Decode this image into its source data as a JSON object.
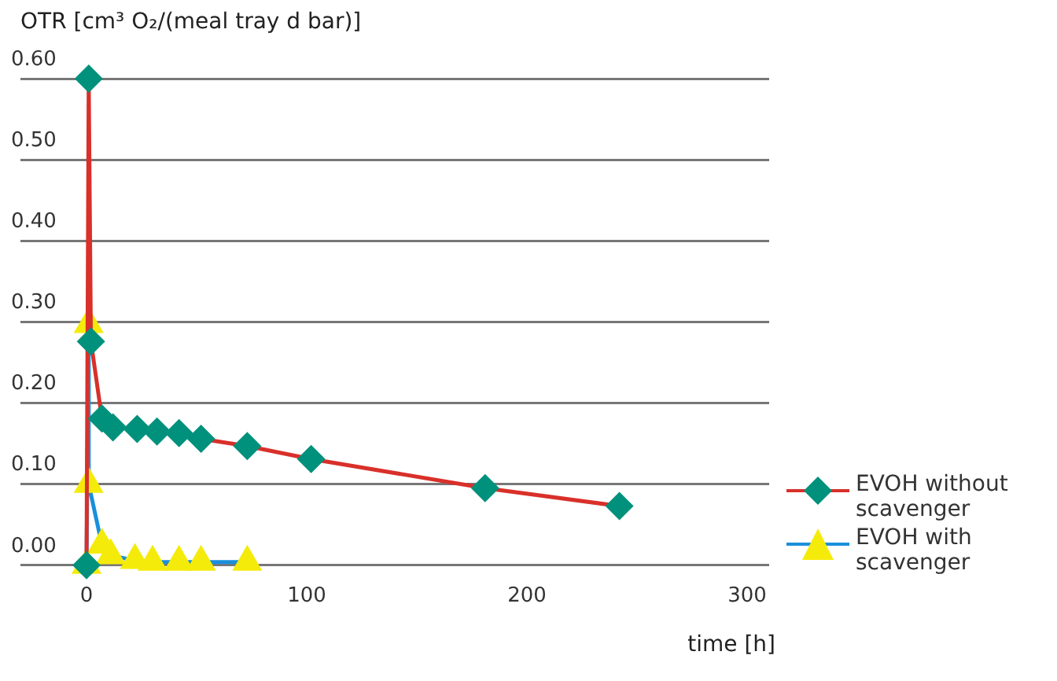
{
  "chart_data": {
    "type": "line",
    "ylabel": "OTR [cm³ O₂/(meal tray d bar)]",
    "xlabel": "time [h]",
    "xlim": [
      -30,
      310
    ],
    "xticks": [
      0,
      100,
      200,
      300
    ],
    "ylim": [
      0,
      0.6
    ],
    "yticks": [
      {
        "value": 0,
        "label": "0.00"
      },
      {
        "value": 0.1,
        "label": "0.10"
      },
      {
        "value": 0.2,
        "label": "0.20"
      },
      {
        "value": 0.3,
        "label": "0.30"
      },
      {
        "value": 0.4,
        "label": "0.40"
      },
      {
        "value": 0.5,
        "label": "0.50"
      },
      {
        "value": 0.6,
        "label": "0.60"
      }
    ],
    "grid": "y",
    "legend": "right",
    "line_style": "solid",
    "series": [
      {
        "name": "EVOH without scavenger",
        "color": "#d9302a",
        "marker": "diamond",
        "colors": [
          "#00917c",
          "#00917c",
          "#00917c",
          "#00917c",
          "#00917c",
          "#00917c",
          "#00917c",
          "#00917c",
          "#00917c",
          "#00917c",
          "#00917c",
          "#00917c",
          "#00917c"
        ],
        "x": [
          0,
          1,
          2,
          7,
          12,
          23,
          32,
          42,
          52,
          73,
          102,
          181,
          242
        ],
        "values": [
          0,
          0.6,
          0.276,
          0.181,
          0.17,
          0.168,
          0.165,
          0.163,
          0.156,
          0.147,
          0.131,
          0.095,
          0.073
        ]
      },
      {
        "name": "EVOH with scavenger",
        "color": "#1a8fdc",
        "marker": "triangle",
        "colors": [
          "#f5eb0a",
          "#f5eb0a",
          "#f5eb0a",
          "#f5eb0a",
          "#f5eb0a",
          "#f5eb0a",
          "#f5eb0a",
          "#f5eb0a",
          "#f5eb0a",
          "#f5eb0a"
        ],
        "x": [
          0,
          1,
          1,
          7,
          11,
          22,
          30,
          42,
          52,
          73
        ],
        "values": [
          0,
          0.297,
          0.1,
          0.025,
          0.012,
          0.006,
          0.004,
          0.004,
          0.004,
          0.004
        ]
      }
    ]
  }
}
